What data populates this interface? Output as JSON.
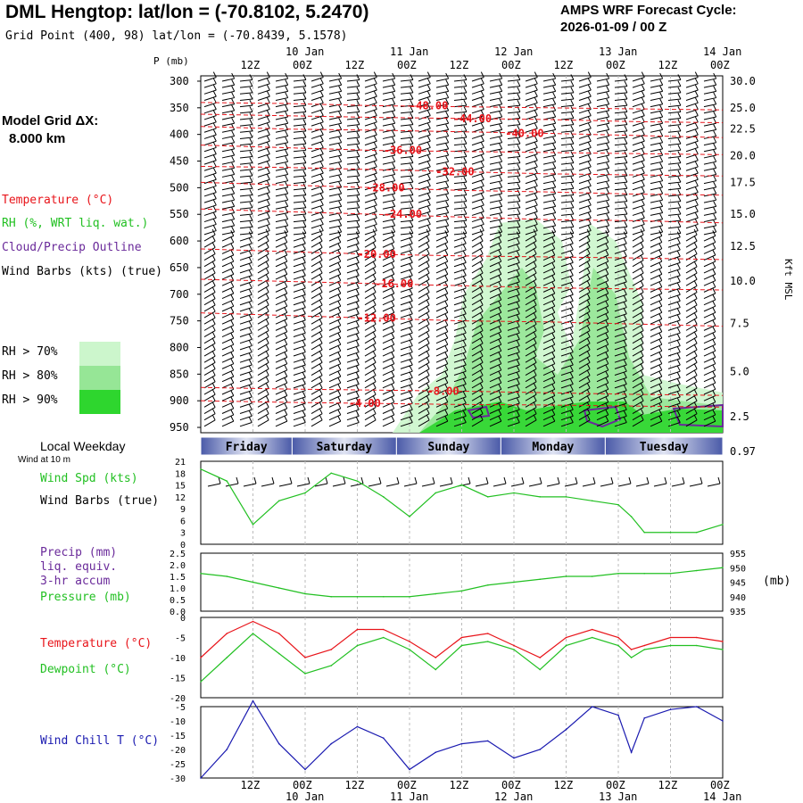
{
  "header": {
    "title": "DML Hengtop:  lat/lon = (-70.8102, 5.2470)",
    "subtitle": "Grid Point (400, 98) lat/lon = (-70.8439, 5.1578)",
    "cycle_line1": "AMPS WRF Forecast Cycle:",
    "cycle_line2": "2026-01-09 / 00  Z"
  },
  "colors": {
    "temp": "#e8141a",
    "rh": "#22c022",
    "cloud": "#6a2a9a",
    "wind": "#000000",
    "chill": "#1a1ab0",
    "day_band_dark": "#4a5aa8",
    "day_band_light": "#dfe3f2"
  },
  "legend": {
    "model_grid_label": "Model Grid ΔX:",
    "model_grid_value": "8.000 km",
    "temperature": "Temperature (°C)",
    "rh": "RH (%, WRT liq. wat.)",
    "cloud": "Cloud/Precip Outline",
    "wind": "Wind Barbs (kts) (true)",
    "rh70": "RH > 70%",
    "rh80": "RH > 80%",
    "rh90": "RH > 90%"
  },
  "panel_labels": {
    "local_weekday": "Local Weekday",
    "wind_at": "Wind at 10 m",
    "wind_spd": "Wind Spd (kts)",
    "wind_barbs": "Wind Barbs (true)",
    "precip": "Precip (mm)",
    "liq": "liq. equiv.",
    "accum": "3-hr accum",
    "pressure": "Pressure (mb)",
    "pressure_unit": "(mb)",
    "temperature": "Temperature (°C)",
    "dewpoint": "Dewpoint (°C)",
    "windchill": "Wind Chill T (°C)",
    "right_axis": "Kft MSL",
    "p_axis": "P (mb)"
  },
  "chart_data": {
    "type": "line",
    "time_axis": {
      "hours": [
        0,
        12,
        24,
        36,
        48,
        60,
        72,
        84,
        96,
        108,
        120
      ],
      "tick_labels": [
        "",
        "12Z",
        "00Z",
        "12Z",
        "00Z",
        "12Z",
        "00Z",
        "12Z",
        "00Z",
        "12Z",
        "00Z"
      ],
      "date_labels": [
        {
          "hour": 24,
          "text": "10 Jan"
        },
        {
          "hour": 48,
          "text": "11 Jan"
        },
        {
          "hour": 72,
          "text": "12 Jan"
        },
        {
          "hour": 96,
          "text": "13 Jan"
        },
        {
          "hour": 120,
          "text": "14 Jan"
        }
      ]
    },
    "weekdays": [
      {
        "name": "Friday",
        "start": 0,
        "end": 21
      },
      {
        "name": "Saturday",
        "start": 21,
        "end": 45
      },
      {
        "name": "Sunday",
        "start": 45,
        "end": 69
      },
      {
        "name": "Monday",
        "start": 69,
        "end": 93
      },
      {
        "name": "Tuesday",
        "start": 93,
        "end": 120
      }
    ],
    "cross_section": {
      "pressure_ticks": [
        300,
        350,
        400,
        450,
        500,
        550,
        600,
        650,
        700,
        750,
        800,
        850,
        900,
        950
      ],
      "height_kft_labels": [
        "30.0",
        "25.0",
        "22.5",
        "20.0",
        "17.5",
        "15.0",
        "12.5",
        "10.0",
        "7.5",
        "5.0",
        "2.5",
        "0.97"
      ],
      "height_kft_pressure": [
        300,
        350,
        390,
        440,
        490,
        550,
        610,
        675,
        755,
        845,
        930,
        995
      ],
      "isotherms": [
        {
          "label": "-48.00",
          "p": [
            340,
            342,
            346,
            348,
            350,
            352,
            354
          ],
          "label_h": 48
        },
        {
          "label": "-44.00",
          "p": [
            362,
            365,
            368,
            370,
            372,
            376,
            378
          ],
          "label_h": 58
        },
        {
          "label": "-40.00",
          "p": [
            385,
            390,
            392,
            395,
            398,
            402,
            406
          ],
          "label_h": 70
        },
        {
          "label": "-36.00",
          "p": [
            420,
            425,
            430,
            432,
            434,
            436,
            438
          ],
          "label_h": 42
        },
        {
          "label": "-32.00",
          "p": [
            460,
            462,
            466,
            470,
            474,
            476,
            478
          ],
          "label_h": 54
        },
        {
          "label": "-28.00",
          "p": [
            490,
            495,
            500,
            505,
            508,
            512,
            514
          ],
          "label_h": 38
        },
        {
          "label": "-24.00",
          "p": [
            540,
            545,
            550,
            555,
            560,
            562,
            566
          ],
          "label_h": 42
        },
        {
          "label": "-20.00",
          "p": [
            615,
            620,
            625,
            628,
            630,
            632,
            635
          ],
          "label_h": 36
        },
        {
          "label": "-16.00",
          "p": [
            672,
            676,
            680,
            684,
            688,
            690,
            692
          ],
          "label_h": 40
        },
        {
          "label": "-12.00",
          "p": [
            735,
            740,
            745,
            750,
            752,
            756,
            760
          ],
          "label_h": 36
        },
        {
          "label": "-8.00",
          "p": [
            875,
            878,
            880,
            882,
            885,
            888,
            890
          ],
          "label_h": 52
        },
        {
          "label": "-4.00",
          "p": [
            900,
            903,
            905,
            907,
            908,
            910,
            912
          ],
          "label_h": 34
        }
      ],
      "rh_time_pts": [
        30,
        40,
        50,
        60,
        70,
        80,
        90,
        100,
        110,
        120
      ]
    },
    "wind_speed": {
      "ylim": [
        0,
        21
      ],
      "ticks": [
        0,
        3,
        6,
        9,
        12,
        15,
        18,
        21
      ],
      "x": [
        0,
        6,
        12,
        18,
        24,
        30,
        36,
        42,
        48,
        54,
        60,
        66,
        72,
        78,
        84,
        90,
        96,
        99,
        102,
        108,
        114,
        120
      ],
      "values": [
        19,
        16,
        5,
        11,
        13,
        18,
        16,
        12,
        7,
        13,
        15,
        12,
        13,
        12,
        12,
        11,
        10,
        7,
        3,
        3,
        3,
        5
      ]
    },
    "pressure": {
      "ylim": [
        935,
        955
      ],
      "ticks": [
        935,
        940,
        945,
        950,
        955
      ],
      "precip_ticks": [
        "0.0",
        "0.5",
        "1.0",
        "1.5",
        "2.0",
        "2.5"
      ],
      "x": [
        0,
        6,
        12,
        18,
        24,
        30,
        36,
        42,
        48,
        54,
        60,
        66,
        72,
        78,
        84,
        90,
        96,
        102,
        108,
        114,
        120
      ],
      "values": [
        948,
        947,
        945,
        943,
        941,
        940,
        940,
        940,
        940,
        941,
        942,
        944,
        945,
        946,
        947,
        947,
        948,
        948,
        948,
        949,
        950
      ]
    },
    "temperature": {
      "ylim": [
        -20,
        0
      ],
      "ticks": [
        -20,
        -15,
        -10,
        -5,
        0
      ],
      "x": [
        0,
        6,
        12,
        18,
        24,
        30,
        36,
        42,
        48,
        54,
        60,
        66,
        72,
        78,
        84,
        90,
        96,
        99,
        102,
        108,
        114,
        120
      ],
      "temp": [
        -10,
        -4,
        -1,
        -4,
        -10,
        -8,
        -3,
        -3,
        -6,
        -10,
        -5,
        -4,
        -7,
        -10,
        -5,
        -3,
        -5,
        -8,
        -7,
        -5,
        -5,
        -6
      ],
      "dewpoint": [
        -16,
        -10,
        -4,
        -9,
        -14,
        -12,
        -7,
        -5,
        -8,
        -13,
        -7,
        -6,
        -8,
        -13,
        -7,
        -5,
        -7,
        -10,
        -8,
        -7,
        -7,
        -8
      ]
    },
    "wind_chill": {
      "ylim": [
        -30,
        -5
      ],
      "ticks": [
        -30,
        -25,
        -20,
        -15,
        -10,
        -5
      ],
      "x": [
        0,
        6,
        12,
        18,
        24,
        30,
        36,
        42,
        48,
        54,
        60,
        66,
        72,
        78,
        84,
        90,
        96,
        99,
        102,
        108,
        114,
        120
      ],
      "values": [
        -30,
        -20,
        -3,
        -18,
        -27,
        -18,
        -12,
        -16,
        -27,
        -21,
        -18,
        -17,
        -23,
        -20,
        -13,
        -5,
        -8,
        -21,
        -9,
        -6,
        -5,
        -10
      ]
    }
  }
}
